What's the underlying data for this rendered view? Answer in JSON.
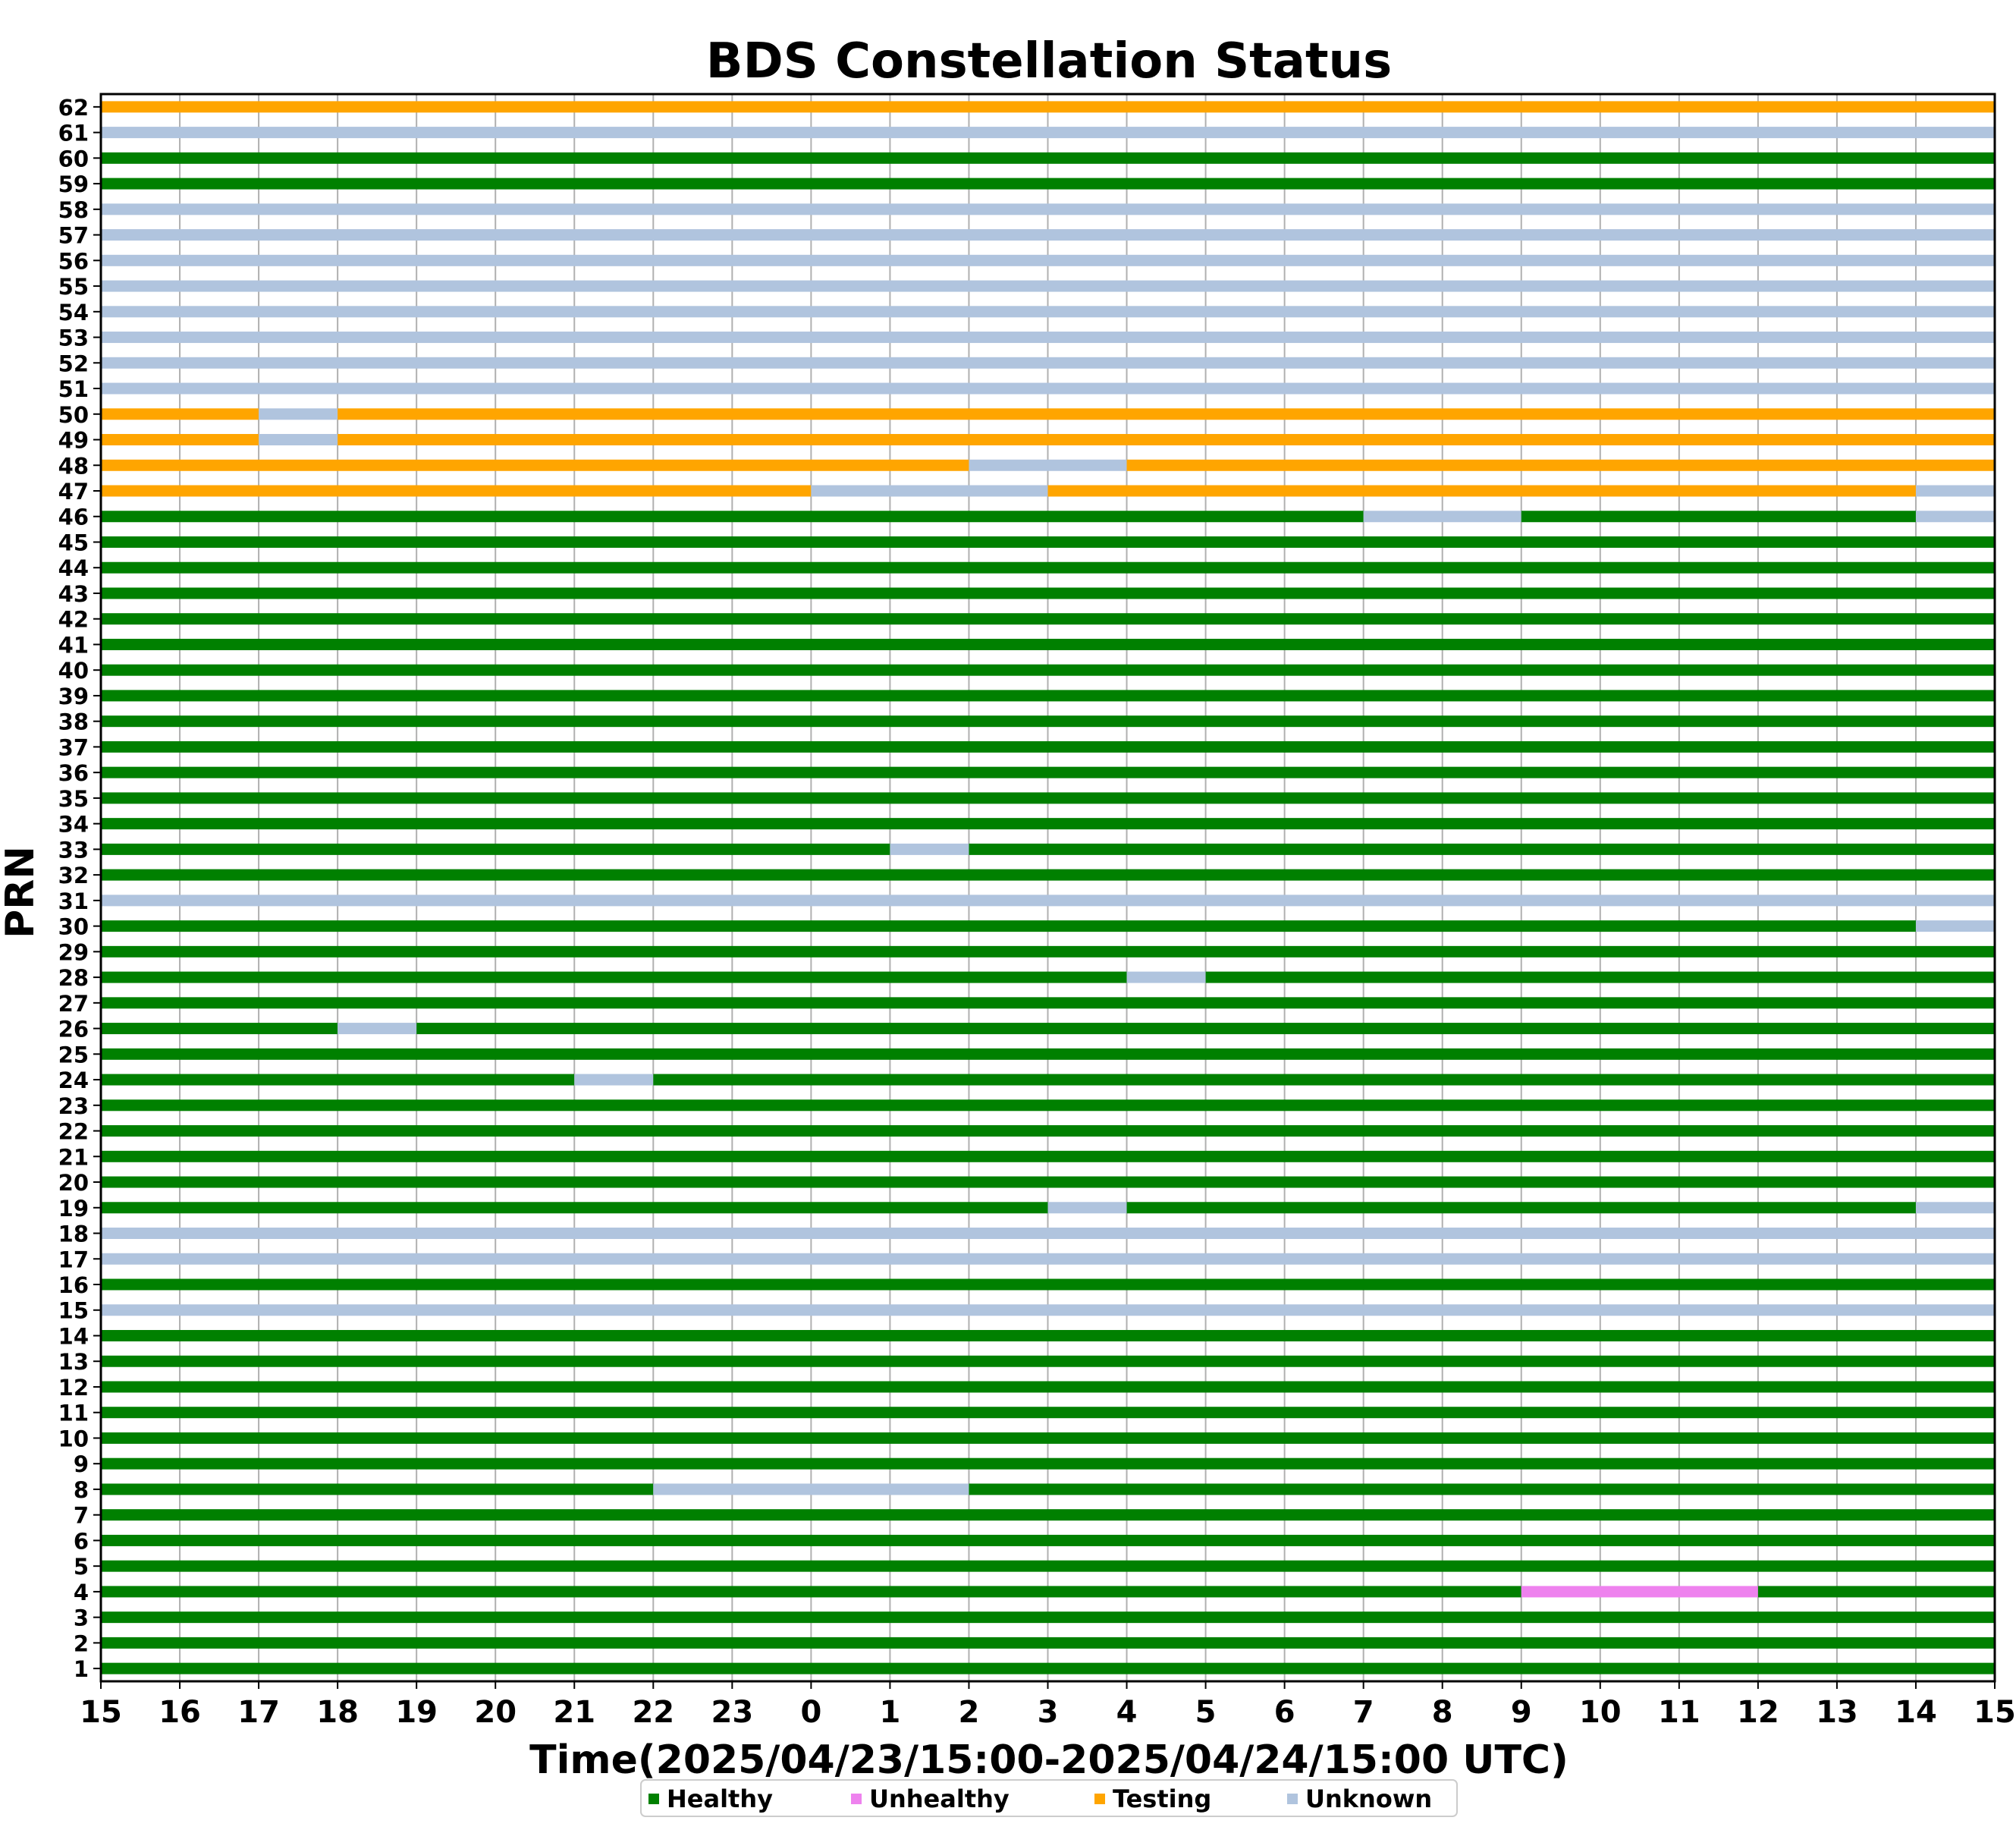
{
  "chart_data": {
    "type": "status-timeline",
    "title": "BDS Constellation Status",
    "xlabel": "Time(2025/04/23/15:00-2025/04/24/15:00 UTC)",
    "ylabel": "PRN",
    "x_unit": "hours since 2025/04/23 15:00 UTC",
    "xlim": [
      0,
      24
    ],
    "x_ticks": [
      "15",
      "16",
      "17",
      "18",
      "19",
      "20",
      "21",
      "22",
      "23",
      "0",
      "1",
      "2",
      "3",
      "4",
      "5",
      "6",
      "7",
      "8",
      "9",
      "10",
      "11",
      "12",
      "13",
      "14",
      "15"
    ],
    "ylim": [
      1,
      62
    ],
    "grid": "vertical",
    "legend_position": "bottom-center",
    "statuses": [
      {
        "name": "Healthy",
        "color": "#008000"
      },
      {
        "name": "Unhealthy",
        "color": "#ee82ee"
      },
      {
        "name": "Testing",
        "color": "#ffa500"
      },
      {
        "name": "Unknown",
        "color": "#b0c4de"
      }
    ],
    "prns": [
      {
        "prn": 1,
        "segments": [
          [
            0,
            24,
            "Healthy"
          ]
        ]
      },
      {
        "prn": 2,
        "segments": [
          [
            0,
            24,
            "Healthy"
          ]
        ]
      },
      {
        "prn": 3,
        "segments": [
          [
            0,
            24,
            "Healthy"
          ]
        ]
      },
      {
        "prn": 4,
        "segments": [
          [
            0,
            18,
            "Healthy"
          ],
          [
            18,
            21,
            "Unhealthy"
          ],
          [
            21,
            24,
            "Healthy"
          ]
        ]
      },
      {
        "prn": 5,
        "segments": [
          [
            0,
            24,
            "Healthy"
          ]
        ]
      },
      {
        "prn": 6,
        "segments": [
          [
            0,
            24,
            "Healthy"
          ]
        ]
      },
      {
        "prn": 7,
        "segments": [
          [
            0,
            24,
            "Healthy"
          ]
        ]
      },
      {
        "prn": 8,
        "segments": [
          [
            0,
            7,
            "Healthy"
          ],
          [
            7,
            11,
            "Unknown"
          ],
          [
            11,
            24,
            "Healthy"
          ]
        ]
      },
      {
        "prn": 9,
        "segments": [
          [
            0,
            24,
            "Healthy"
          ]
        ]
      },
      {
        "prn": 10,
        "segments": [
          [
            0,
            24,
            "Healthy"
          ]
        ]
      },
      {
        "prn": 11,
        "segments": [
          [
            0,
            24,
            "Healthy"
          ]
        ]
      },
      {
        "prn": 12,
        "segments": [
          [
            0,
            24,
            "Healthy"
          ]
        ]
      },
      {
        "prn": 13,
        "segments": [
          [
            0,
            24,
            "Healthy"
          ]
        ]
      },
      {
        "prn": 14,
        "segments": [
          [
            0,
            24,
            "Healthy"
          ]
        ]
      },
      {
        "prn": 15,
        "segments": [
          [
            0,
            24,
            "Unknown"
          ]
        ]
      },
      {
        "prn": 16,
        "segments": [
          [
            0,
            24,
            "Healthy"
          ]
        ]
      },
      {
        "prn": 17,
        "segments": [
          [
            0,
            24,
            "Unknown"
          ]
        ]
      },
      {
        "prn": 18,
        "segments": [
          [
            0,
            24,
            "Unknown"
          ]
        ]
      },
      {
        "prn": 19,
        "segments": [
          [
            0,
            12,
            "Healthy"
          ],
          [
            12,
            13,
            "Unknown"
          ],
          [
            13,
            23,
            "Healthy"
          ],
          [
            23,
            24,
            "Unknown"
          ]
        ]
      },
      {
        "prn": 20,
        "segments": [
          [
            0,
            24,
            "Healthy"
          ]
        ]
      },
      {
        "prn": 21,
        "segments": [
          [
            0,
            24,
            "Healthy"
          ]
        ]
      },
      {
        "prn": 22,
        "segments": [
          [
            0,
            24,
            "Healthy"
          ]
        ]
      },
      {
        "prn": 23,
        "segments": [
          [
            0,
            24,
            "Healthy"
          ]
        ]
      },
      {
        "prn": 24,
        "segments": [
          [
            0,
            6,
            "Healthy"
          ],
          [
            6,
            7,
            "Unknown"
          ],
          [
            7,
            24,
            "Healthy"
          ]
        ]
      },
      {
        "prn": 25,
        "segments": [
          [
            0,
            24,
            "Healthy"
          ]
        ]
      },
      {
        "prn": 26,
        "segments": [
          [
            0,
            3,
            "Healthy"
          ],
          [
            3,
            4,
            "Unknown"
          ],
          [
            4,
            24,
            "Healthy"
          ]
        ]
      },
      {
        "prn": 27,
        "segments": [
          [
            0,
            24,
            "Healthy"
          ]
        ]
      },
      {
        "prn": 28,
        "segments": [
          [
            0,
            13,
            "Healthy"
          ],
          [
            13,
            14,
            "Unknown"
          ],
          [
            14,
            24,
            "Healthy"
          ]
        ]
      },
      {
        "prn": 29,
        "segments": [
          [
            0,
            24,
            "Healthy"
          ]
        ]
      },
      {
        "prn": 30,
        "segments": [
          [
            0,
            23,
            "Healthy"
          ],
          [
            23,
            24,
            "Unknown"
          ]
        ]
      },
      {
        "prn": 31,
        "segments": [
          [
            0,
            24,
            "Unknown"
          ]
        ]
      },
      {
        "prn": 32,
        "segments": [
          [
            0,
            24,
            "Healthy"
          ]
        ]
      },
      {
        "prn": 33,
        "segments": [
          [
            0,
            10,
            "Healthy"
          ],
          [
            10,
            11,
            "Unknown"
          ],
          [
            11,
            24,
            "Healthy"
          ]
        ]
      },
      {
        "prn": 34,
        "segments": [
          [
            0,
            24,
            "Healthy"
          ]
        ]
      },
      {
        "prn": 35,
        "segments": [
          [
            0,
            24,
            "Healthy"
          ]
        ]
      },
      {
        "prn": 36,
        "segments": [
          [
            0,
            24,
            "Healthy"
          ]
        ]
      },
      {
        "prn": 37,
        "segments": [
          [
            0,
            24,
            "Healthy"
          ]
        ]
      },
      {
        "prn": 38,
        "segments": [
          [
            0,
            24,
            "Healthy"
          ]
        ]
      },
      {
        "prn": 39,
        "segments": [
          [
            0,
            24,
            "Healthy"
          ]
        ]
      },
      {
        "prn": 40,
        "segments": [
          [
            0,
            24,
            "Healthy"
          ]
        ]
      },
      {
        "prn": 41,
        "segments": [
          [
            0,
            24,
            "Healthy"
          ]
        ]
      },
      {
        "prn": 42,
        "segments": [
          [
            0,
            24,
            "Healthy"
          ]
        ]
      },
      {
        "prn": 43,
        "segments": [
          [
            0,
            24,
            "Healthy"
          ]
        ]
      },
      {
        "prn": 44,
        "segments": [
          [
            0,
            24,
            "Healthy"
          ]
        ]
      },
      {
        "prn": 45,
        "segments": [
          [
            0,
            24,
            "Healthy"
          ]
        ]
      },
      {
        "prn": 46,
        "segments": [
          [
            0,
            16,
            "Healthy"
          ],
          [
            16,
            18,
            "Unknown"
          ],
          [
            18,
            23,
            "Healthy"
          ],
          [
            23,
            24,
            "Unknown"
          ]
        ]
      },
      {
        "prn": 47,
        "segments": [
          [
            0,
            9,
            "Testing"
          ],
          [
            9,
            12,
            "Unknown"
          ],
          [
            12,
            23,
            "Testing"
          ],
          [
            23,
            24,
            "Unknown"
          ]
        ]
      },
      {
        "prn": 48,
        "segments": [
          [
            0,
            11,
            "Testing"
          ],
          [
            11,
            13,
            "Unknown"
          ],
          [
            13,
            24,
            "Testing"
          ]
        ]
      },
      {
        "prn": 49,
        "segments": [
          [
            0,
            2,
            "Testing"
          ],
          [
            2,
            3,
            "Unknown"
          ],
          [
            3,
            24,
            "Testing"
          ]
        ]
      },
      {
        "prn": 50,
        "segments": [
          [
            0,
            2,
            "Testing"
          ],
          [
            2,
            3,
            "Unknown"
          ],
          [
            3,
            24,
            "Testing"
          ]
        ]
      },
      {
        "prn": 51,
        "segments": [
          [
            0,
            24,
            "Unknown"
          ]
        ]
      },
      {
        "prn": 52,
        "segments": [
          [
            0,
            24,
            "Unknown"
          ]
        ]
      },
      {
        "prn": 53,
        "segments": [
          [
            0,
            24,
            "Unknown"
          ]
        ]
      },
      {
        "prn": 54,
        "segments": [
          [
            0,
            24,
            "Unknown"
          ]
        ]
      },
      {
        "prn": 55,
        "segments": [
          [
            0,
            24,
            "Unknown"
          ]
        ]
      },
      {
        "prn": 56,
        "segments": [
          [
            0,
            24,
            "Unknown"
          ]
        ]
      },
      {
        "prn": 57,
        "segments": [
          [
            0,
            24,
            "Unknown"
          ]
        ]
      },
      {
        "prn": 58,
        "segments": [
          [
            0,
            24,
            "Unknown"
          ]
        ]
      },
      {
        "prn": 59,
        "segments": [
          [
            0,
            24,
            "Healthy"
          ]
        ]
      },
      {
        "prn": 60,
        "segments": [
          [
            0,
            24,
            "Healthy"
          ]
        ]
      },
      {
        "prn": 61,
        "segments": [
          [
            0,
            24,
            "Unknown"
          ]
        ]
      },
      {
        "prn": 62,
        "segments": [
          [
            0,
            24,
            "Testing"
          ]
        ]
      }
    ]
  }
}
